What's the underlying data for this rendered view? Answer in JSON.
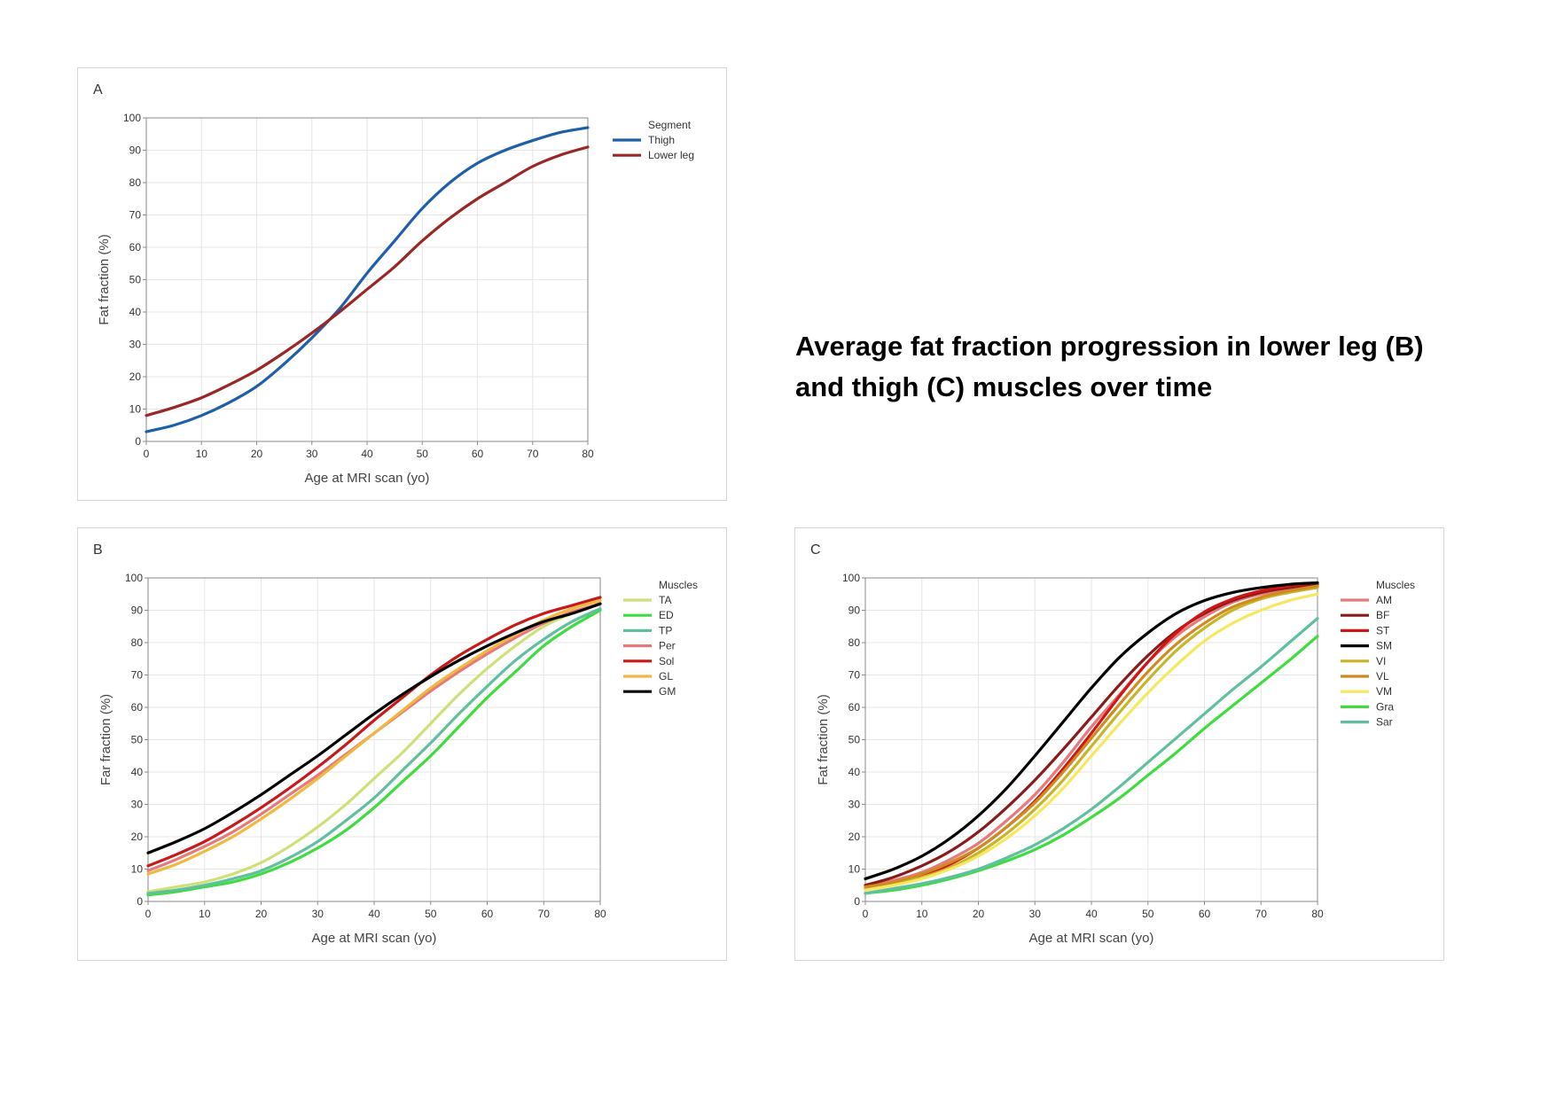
{
  "headline": {
    "line1": "Average fat fraction progression in lower leg (B)",
    "line2": "and thigh (C) muscles over time"
  },
  "chart_data": [
    {
      "panel": "A",
      "type": "line",
      "title": "A",
      "xlabel": "Age at MRI scan (yo)",
      "ylabel": "Fat fraction (%)",
      "xlim": [
        0,
        80
      ],
      "ylim": [
        0,
        100
      ],
      "xticks": [
        0,
        10,
        20,
        30,
        40,
        50,
        60,
        70,
        80
      ],
      "yticks": [
        0,
        10,
        20,
        30,
        40,
        50,
        60,
        70,
        80,
        90,
        100
      ],
      "grid": true,
      "legend_title": "Segment",
      "legend_position": "right",
      "x": [
        0,
        5,
        10,
        15,
        20,
        25,
        30,
        35,
        40,
        45,
        50,
        55,
        60,
        65,
        70,
        75,
        80
      ],
      "series": [
        {
          "name": "Thigh",
          "color": "#1f5fa8",
          "values": [
            3,
            5,
            8,
            12,
            17,
            24,
            32,
            41,
            52,
            62,
            72,
            80,
            86,
            90,
            93,
            95.5,
            97
          ]
        },
        {
          "name": "Lower leg",
          "color": "#9a2626",
          "values": [
            8,
            10.5,
            13.5,
            17.5,
            22,
            27.5,
            33.5,
            40,
            47,
            54,
            62,
            69,
            75,
            80,
            85,
            88.5,
            91
          ]
        }
      ]
    },
    {
      "panel": "B",
      "type": "line",
      "title": "B",
      "xlabel": "Age at MRI scan (yo)",
      "ylabel": "Far fraction (%)",
      "xlim": [
        0,
        80
      ],
      "ylim": [
        0,
        100
      ],
      "xticks": [
        0,
        10,
        20,
        30,
        40,
        50,
        60,
        70,
        80
      ],
      "yticks": [
        0,
        10,
        20,
        30,
        40,
        50,
        60,
        70,
        80,
        90,
        100
      ],
      "grid": true,
      "legend_title": "Muscles",
      "legend_position": "right",
      "x": [
        0,
        5,
        10,
        15,
        20,
        25,
        30,
        35,
        40,
        45,
        50,
        55,
        60,
        65,
        70,
        75,
        80
      ],
      "series": [
        {
          "name": "TA",
          "color": "#cfe078",
          "values": [
            3,
            4.5,
            6,
            8.5,
            12,
            17,
            23,
            30,
            38,
            46,
            55,
            64,
            72,
            79,
            85,
            89,
            92
          ]
        },
        {
          "name": "ED",
          "color": "#3fdc3f",
          "values": [
            2,
            3,
            4.5,
            6,
            8.5,
            12,
            16.5,
            22,
            29,
            37,
            45,
            54,
            63,
            71,
            79,
            85,
            90
          ]
        },
        {
          "name": "TP",
          "color": "#5fbf9f",
          "values": [
            2.5,
            3.5,
            5,
            7,
            9.5,
            13.5,
            18.5,
            25,
            32,
            40.5,
            49,
            58,
            66.5,
            74.5,
            81,
            86.5,
            90.5
          ]
        },
        {
          "name": "Per",
          "color": "#e67a7a",
          "values": [
            9.5,
            13,
            17,
            21.5,
            27,
            33,
            39,
            45.5,
            52,
            58.5,
            65,
            71,
            76.5,
            81.5,
            86,
            89.5,
            92
          ]
        },
        {
          "name": "Sol",
          "color": "#c81818",
          "values": [
            11,
            14.5,
            18.5,
            23.5,
            29,
            35,
            41.5,
            48.5,
            56,
            63,
            70,
            76,
            81,
            85.5,
            89,
            91.5,
            94
          ]
        },
        {
          "name": "GL",
          "color": "#f0b840",
          "values": [
            8.5,
            11.5,
            15.5,
            20,
            25.5,
            31.5,
            38,
            45,
            52,
            59,
            66,
            72,
            77.5,
            82.5,
            87,
            90.5,
            93
          ]
        },
        {
          "name": "GM",
          "color": "#000000",
          "values": [
            15,
            18.5,
            22.5,
            27.5,
            33,
            39,
            45,
            51.5,
            58,
            64,
            69.5,
            74.5,
            79,
            83,
            86.5,
            89,
            92
          ]
        }
      ]
    },
    {
      "panel": "C",
      "type": "line",
      "title": "C",
      "xlabel": "Age at MRI scan (yo)",
      "ylabel": "Fat fraction (%)",
      "xlim": [
        0,
        80
      ],
      "ylim": [
        0,
        100
      ],
      "xticks": [
        0,
        10,
        20,
        30,
        40,
        50,
        60,
        70,
        80
      ],
      "yticks": [
        0,
        10,
        20,
        30,
        40,
        50,
        60,
        70,
        80,
        90,
        100
      ],
      "grid": true,
      "legend_title": "Muscles",
      "legend_position": "right",
      "x": [
        0,
        5,
        10,
        15,
        20,
        25,
        30,
        35,
        40,
        45,
        50,
        55,
        60,
        65,
        70,
        75,
        80
      ],
      "series": [
        {
          "name": "AM",
          "color": "#e67a7a",
          "values": [
            5,
            6.5,
            9,
            13,
            18,
            25,
            33,
            43,
            54,
            64,
            74,
            82,
            88,
            92.5,
            95,
            96.5,
            97.5
          ]
        },
        {
          "name": "BF",
          "color": "#8b1a1a",
          "values": [
            5,
            7.5,
            11,
            15.5,
            21.5,
            29,
            37.5,
            47,
            57,
            67,
            76,
            83.5,
            89,
            93,
            95.5,
            97,
            98
          ]
        },
        {
          "name": "ST",
          "color": "#d01515",
          "values": [
            4,
            5.5,
            8,
            11.5,
            16.5,
            23,
            31,
            41,
            52,
            63.5,
            74,
            83,
            89.5,
            93.5,
            96,
            97.5,
            98.5
          ]
        },
        {
          "name": "SM",
          "color": "#000000",
          "values": [
            7,
            10,
            14,
            19.5,
            26.5,
            35,
            45,
            55.5,
            66,
            75.5,
            83,
            89,
            93,
            95.5,
            97,
            98,
            98.5
          ]
        },
        {
          "name": "VI",
          "color": "#c8b428",
          "values": [
            4,
            5.5,
            7.5,
            10.5,
            15,
            21,
            28.5,
            37.5,
            48,
            58.5,
            68.5,
            77.5,
            84.5,
            90,
            93.5,
            95.5,
            97
          ]
        },
        {
          "name": "VL",
          "color": "#d08a20",
          "values": [
            4.5,
            6,
            8.5,
            12,
            16.5,
            23,
            30.5,
            40,
            50.5,
            61,
            71,
            79.5,
            86,
            91,
            94,
            96,
            97.5
          ]
        },
        {
          "name": "VM",
          "color": "#f5e860",
          "values": [
            3.5,
            5,
            7,
            10,
            14,
            19.5,
            26.5,
            35,
            45,
            55,
            64.5,
            73,
            80.5,
            86,
            90,
            93,
            95
          ]
        },
        {
          "name": "Gra",
          "color": "#3fdc3f",
          "values": [
            2.5,
            3.5,
            5,
            7,
            9.5,
            12.5,
            16,
            20.5,
            26,
            32,
            39,
            46,
            53.5,
            60.5,
            67.5,
            74.5,
            82
          ]
        },
        {
          "name": "Sar",
          "color": "#5fbf9f",
          "values": [
            2.5,
            4,
            5.5,
            7.5,
            10,
            13.5,
            17.5,
            22.5,
            28.5,
            35.5,
            43,
            50.5,
            58,
            65.5,
            72.5,
            80,
            87.5
          ]
        }
      ]
    }
  ]
}
